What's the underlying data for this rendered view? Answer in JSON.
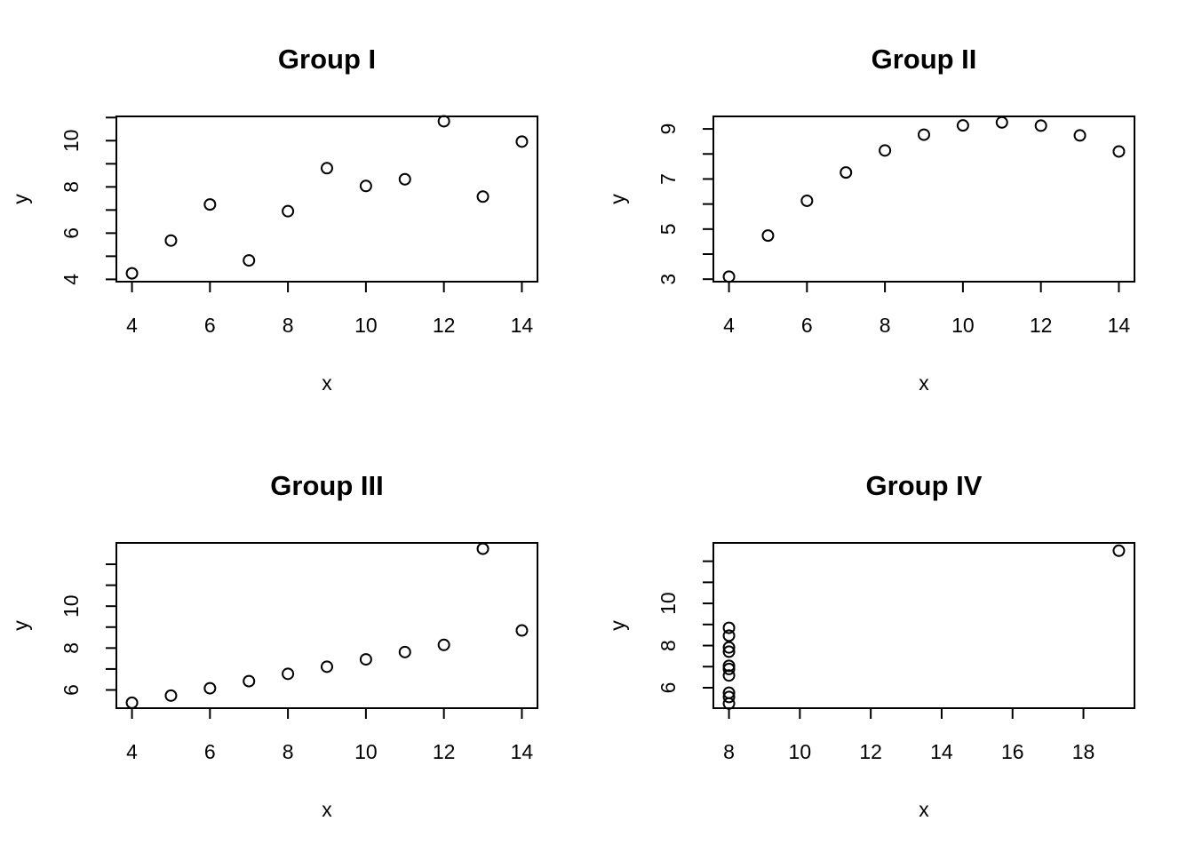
{
  "chart_data": [
    {
      "type": "scatter",
      "title": "Group I",
      "xlabel": "x",
      "ylabel": "y",
      "xticks": [
        4,
        6,
        8,
        10,
        12,
        14
      ],
      "yticks": [
        4,
        6,
        8,
        10
      ],
      "yminor": [
        5,
        7,
        9,
        11
      ],
      "xlim": [
        3.6,
        14.4
      ],
      "ylim": [
        3.9,
        11.05
      ],
      "grid": false,
      "x": [
        4,
        5,
        6,
        7,
        8,
        9,
        10,
        11,
        12,
        13,
        14
      ],
      "y": [
        4.26,
        5.68,
        7.24,
        4.82,
        6.95,
        8.81,
        8.04,
        8.33,
        10.84,
        7.58,
        9.96
      ]
    },
    {
      "type": "scatter",
      "title": "Group II",
      "xlabel": "x",
      "ylabel": "y",
      "xticks": [
        4,
        6,
        8,
        10,
        12,
        14
      ],
      "yticks": [
        3,
        5,
        7,
        9
      ],
      "yminor": [
        4,
        6,
        8
      ],
      "xlim": [
        3.6,
        14.4
      ],
      "ylim": [
        2.9,
        9.5
      ],
      "grid": false,
      "x": [
        4,
        5,
        6,
        7,
        8,
        9,
        10,
        11,
        12,
        13,
        14
      ],
      "y": [
        3.1,
        4.74,
        6.13,
        7.26,
        8.14,
        8.77,
        9.14,
        9.26,
        9.13,
        8.74,
        8.1
      ]
    },
    {
      "type": "scatter",
      "title": "Group III",
      "xlabel": "x",
      "ylabel": "y",
      "xticks": [
        4,
        6,
        8,
        10,
        12,
        14
      ],
      "yticks": [
        6,
        8,
        10
      ],
      "yminor": [
        7,
        9,
        11,
        12
      ],
      "xlim": [
        3.6,
        14.4
      ],
      "ylim": [
        5.13,
        13.02
      ],
      "grid": false,
      "x": [
        4,
        5,
        6,
        7,
        8,
        9,
        10,
        11,
        12,
        13,
        14
      ],
      "y": [
        5.39,
        5.73,
        6.08,
        6.42,
        6.77,
        7.11,
        7.46,
        7.81,
        8.15,
        12.74,
        8.84
      ]
    },
    {
      "type": "scatter",
      "title": "Group IV",
      "xlabel": "x",
      "ylabel": "y",
      "xticks": [
        8,
        10,
        12,
        14,
        16,
        18
      ],
      "yticks": [
        6,
        8,
        10
      ],
      "yminor": [
        7,
        9,
        11,
        12
      ],
      "xlim": [
        7.56,
        19.44
      ],
      "ylim": [
        5.03,
        12.87
      ],
      "grid": false,
      "x": [
        8,
        8,
        8,
        8,
        8,
        8,
        8,
        19,
        8,
        8,
        8
      ],
      "y": [
        6.58,
        5.76,
        7.71,
        8.84,
        8.47,
        7.04,
        5.25,
        12.5,
        5.56,
        7.91,
        6.89
      ]
    }
  ]
}
